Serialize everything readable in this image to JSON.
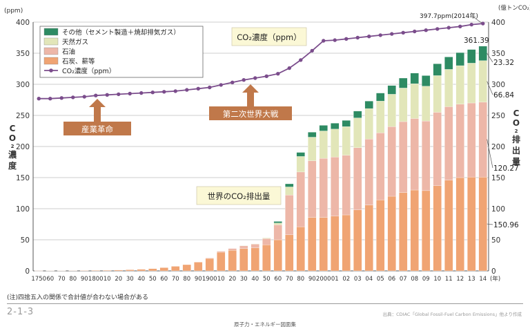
{
  "chart_data": {
    "type": "bar",
    "title": "世界のCO₂排出量",
    "left_axis": {
      "unit": "(ppm)",
      "label_chars": [
        "C",
        "O",
        "2",
        "濃",
        "度"
      ],
      "ticks": [
        0,
        50,
        100,
        150,
        200,
        250,
        300,
        350,
        400
      ],
      "ylim": [
        0,
        400
      ]
    },
    "right_axis": {
      "unit": "(億トンCO₂)",
      "label_chars": [
        "C",
        "O",
        "2",
        "排",
        "出",
        "量"
      ],
      "ticks": [
        0,
        50,
        100,
        150,
        200,
        250,
        300,
        350,
        400
      ],
      "ylim": [
        0,
        400
      ]
    },
    "x_unit": "(年)",
    "categories": [
      "1750",
      "60",
      "70",
      "80",
      "90",
      "1800",
      "10",
      "20",
      "30",
      "40",
      "50",
      "60",
      "70",
      "80",
      "90",
      "1900",
      "10",
      "20",
      "30",
      "40",
      "50",
      "60",
      "70",
      "80",
      "90",
      "2000",
      "01",
      "02",
      "03",
      "04",
      "05",
      "06",
      "07",
      "08",
      "09",
      "10",
      "11",
      "12",
      "13",
      "14"
    ],
    "x_tick_labels": [
      "1750",
      "60",
      "70",
      "80",
      "90",
      "1800",
      "10",
      "20",
      "30",
      "40",
      "50",
      "60",
      "70",
      "80",
      "90",
      "1900",
      "10",
      "20",
      "30",
      "40",
      "50",
      "60",
      "70",
      "80",
      "90",
      "2000",
      "01",
      "02",
      "03",
      "04",
      "05",
      "06",
      "07",
      "08",
      "09",
      "10",
      "11",
      "12",
      "13",
      "14"
    ],
    "series": [
      {
        "name": "石炭、薪等",
        "color": "#f0a473",
        "values": [
          0.3,
          0.4,
          0.4,
          0.5,
          0.6,
          0.8,
          1.0,
          1.3,
          1.8,
          2.5,
          3.5,
          5.2,
          7.3,
          10,
          14,
          20,
          30,
          33,
          36,
          37,
          42,
          50,
          58,
          71,
          86,
          86,
          88,
          90,
          98,
          106,
          114,
          120,
          126,
          130,
          129,
          137,
          146,
          150,
          151,
          150.96
        ]
      },
      {
        "name": "石油",
        "color": "#edb7a8",
        "values": [
          0,
          0,
          0,
          0,
          0,
          0,
          0,
          0,
          0,
          0,
          0,
          0,
          0,
          0,
          0,
          0.8,
          1.6,
          3,
          4.5,
          6,
          10,
          24,
          64,
          88,
          91,
          95,
          95,
          96,
          100,
          106,
          108,
          112,
          114,
          115,
          112,
          118,
          118,
          118,
          119,
          120.27
        ]
      },
      {
        "name": "天然ガス",
        "color": "#e2e6b9",
        "values": [
          0,
          0,
          0,
          0,
          0,
          0,
          0,
          0,
          0,
          0,
          0,
          0,
          0,
          0,
          0,
          0,
          0,
          0,
          0.3,
          0.5,
          1,
          3,
          13,
          25,
          38,
          44,
          45,
          46,
          48,
          49,
          51,
          52,
          54,
          56,
          56,
          59,
          60,
          62,
          64,
          66.84
        ]
      },
      {
        "name": "その他（セメント製造＋焼却排気ガス）",
        "color": "#2e8b63",
        "values": [
          0,
          0,
          0,
          0,
          0,
          0,
          0,
          0,
          0,
          0,
          0,
          0,
          0,
          0,
          0,
          0,
          0,
          0,
          0,
          0,
          0,
          2.5,
          5,
          6.5,
          8,
          9,
          9.5,
          10,
          11,
          12,
          13,
          14,
          16,
          17,
          17,
          19,
          20,
          21,
          22,
          23.32
        ]
      }
    ],
    "line_series": {
      "name": "CO₂濃度（ppm）",
      "color": "#7b4d8c",
      "values": [
        277,
        277,
        278,
        279,
        280,
        282,
        283,
        284,
        285,
        286,
        287,
        288,
        289,
        291,
        293,
        295,
        299,
        303,
        307,
        310,
        313,
        317,
        326,
        339,
        354,
        370,
        371,
        373,
        375,
        377,
        379,
        381,
        383,
        385,
        387,
        389,
        391,
        393,
        396,
        397.7
      ]
    },
    "legend": {
      "position": "top-left"
    },
    "annotations": {
      "line_callout": "CO₂濃度（ppm）",
      "ind_rev": "産業革命",
      "ww2": "第二次世界大戦",
      "peak_ppm": "397.7ppm(2014年)",
      "total": "361.39",
      "v_other": "23.32",
      "v_gas": "66.84",
      "v_oil": "120.27",
      "v_coal": "150.96"
    },
    "grid": true
  },
  "footer": {
    "note": "(注)四捨五入の関係で合計値が合わない場合がある",
    "figure_number": "2-1-3",
    "source": "出典：CDIAC「Global Fossil-Fuel Carbon Emissions」他より作成",
    "publisher": "原子力・エネルギー図面集"
  }
}
